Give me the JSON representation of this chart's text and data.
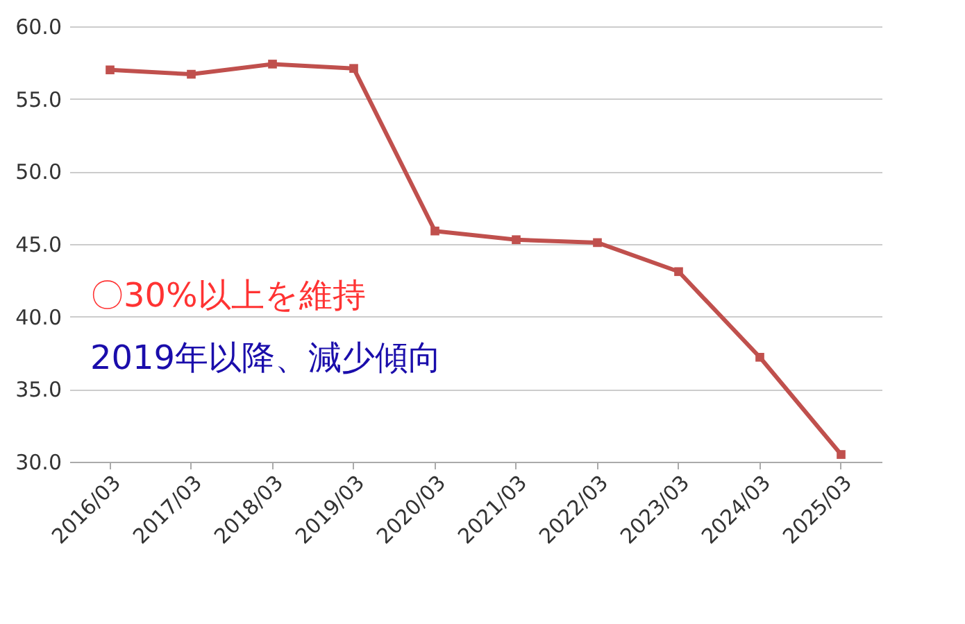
{
  "chart_data": {
    "type": "line",
    "categories": [
      "2016/03",
      "2017/03",
      "2018/03",
      "2019/03",
      "2020/03",
      "2021/03",
      "2022/03",
      "2023/03",
      "2024/03",
      "2025/03"
    ],
    "series": [
      {
        "color": "#c0504d",
        "values": [
          57.0,
          56.7,
          57.4,
          57.1,
          45.9,
          45.3,
          45.1,
          43.1,
          37.2,
          30.5
        ]
      }
    ],
    "ylim": [
      30,
      60
    ],
    "yticks": [
      {
        "value": 30,
        "label": "30.0"
      },
      {
        "value": 35,
        "label": "35.0"
      },
      {
        "value": 40,
        "label": "40.0"
      },
      {
        "value": 45,
        "label": "45.0"
      },
      {
        "value": 50,
        "label": "50.0"
      },
      {
        "value": 55,
        "label": "55.0"
      },
      {
        "value": 60,
        "label": "60.0"
      }
    ],
    "grid": "y",
    "marker": "square",
    "line_style": "solid",
    "annotations": [
      "〇30%以上を維持",
      "2019年以降、減少傾向"
    ]
  }
}
